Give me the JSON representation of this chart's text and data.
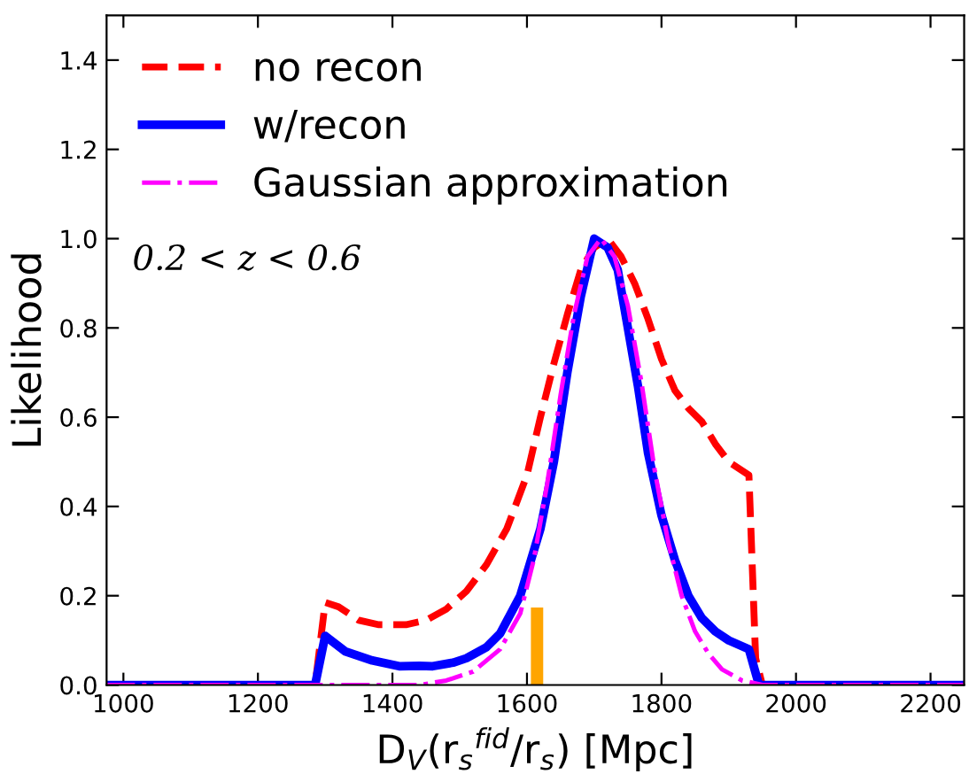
{
  "chart_data": {
    "type": "line",
    "xlabel": "D$_{V}$(r$_{s}$$^{fid}$/r$_{s}$) [Mpc]",
    "ylabel": "Likelihood",
    "annotations": [
      "0.2 < z < 0.6"
    ],
    "xlim": [
      975,
      2250
    ],
    "xticks": [
      1000,
      1200,
      1400,
      1600,
      1800,
      2000,
      2200
    ],
    "ylim": [
      0,
      1.5
    ],
    "yticks": [
      {
        "value": 0,
        "label": "0.0"
      },
      0.2,
      0.4,
      0.6,
      0.8,
      {
        "value": 1,
        "label": "1.0"
      },
      1.2,
      1.4
    ],
    "grid": false,
    "legend": "top left",
    "series": [
      {
        "name": "no recon",
        "color": "#ff0000",
        "line_style": "dashed",
        "x": [
          975,
          1285,
          1300,
          1320,
          1350,
          1380,
          1420,
          1450,
          1480,
          1510,
          1540,
          1570,
          1600,
          1620,
          1640,
          1660,
          1680,
          1700,
          1720,
          1740,
          1760,
          1780,
          1800,
          1820,
          1840,
          1860,
          1880,
          1900,
          1930,
          1940,
          1950,
          2250
        ],
        "values": [
          0,
          0,
          0.185,
          0.175,
          0.145,
          0.135,
          0.135,
          0.145,
          0.17,
          0.21,
          0.27,
          0.35,
          0.47,
          0.6,
          0.72,
          0.83,
          0.93,
          0.98,
          1.0,
          0.96,
          0.9,
          0.82,
          0.73,
          0.66,
          0.62,
          0.59,
          0.54,
          0.5,
          0.47,
          0.06,
          0,
          0
        ]
      },
      {
        "name": "w/recon",
        "color": "#0000ff",
        "line_style": "solid",
        "x": [
          975,
          1285,
          1300,
          1330,
          1370,
          1410,
          1440,
          1460,
          1490,
          1510,
          1540,
          1560,
          1590,
          1620,
          1640,
          1660,
          1680,
          1700,
          1720,
          1735,
          1750,
          1765,
          1780,
          1800,
          1820,
          1840,
          1860,
          1880,
          1900,
          1930,
          1945,
          2250
        ],
        "values": [
          0,
          0,
          0.11,
          0.075,
          0.055,
          0.042,
          0.043,
          0.042,
          0.05,
          0.06,
          0.085,
          0.115,
          0.2,
          0.35,
          0.5,
          0.7,
          0.87,
          1.0,
          0.98,
          0.93,
          0.8,
          0.67,
          0.52,
          0.38,
          0.28,
          0.2,
          0.15,
          0.12,
          0.1,
          0.08,
          0,
          0
        ]
      },
      {
        "name": "Gaussian approximation",
        "color": "#ff00ff",
        "line_style": "dashdot",
        "x": [
          975,
          1440,
          1480,
          1520,
          1560,
          1590,
          1610,
          1630,
          1650,
          1670,
          1690,
          1710,
          1730,
          1750,
          1770,
          1790,
          1810,
          1830,
          1850,
          1870,
          1890,
          1920,
          1950,
          2250
        ],
        "values": [
          0,
          0,
          0.01,
          0.03,
          0.08,
          0.16,
          0.28,
          0.45,
          0.65,
          0.83,
          0.96,
          1.0,
          0.96,
          0.85,
          0.68,
          0.48,
          0.32,
          0.2,
          0.12,
          0.07,
          0.035,
          0.01,
          0,
          0
        ]
      },
      {
        "color": "#ffa500",
        "line_style": "solid",
        "x": [
          1615,
          1615
        ],
        "values": [
          0,
          0.16
        ]
      }
    ]
  }
}
